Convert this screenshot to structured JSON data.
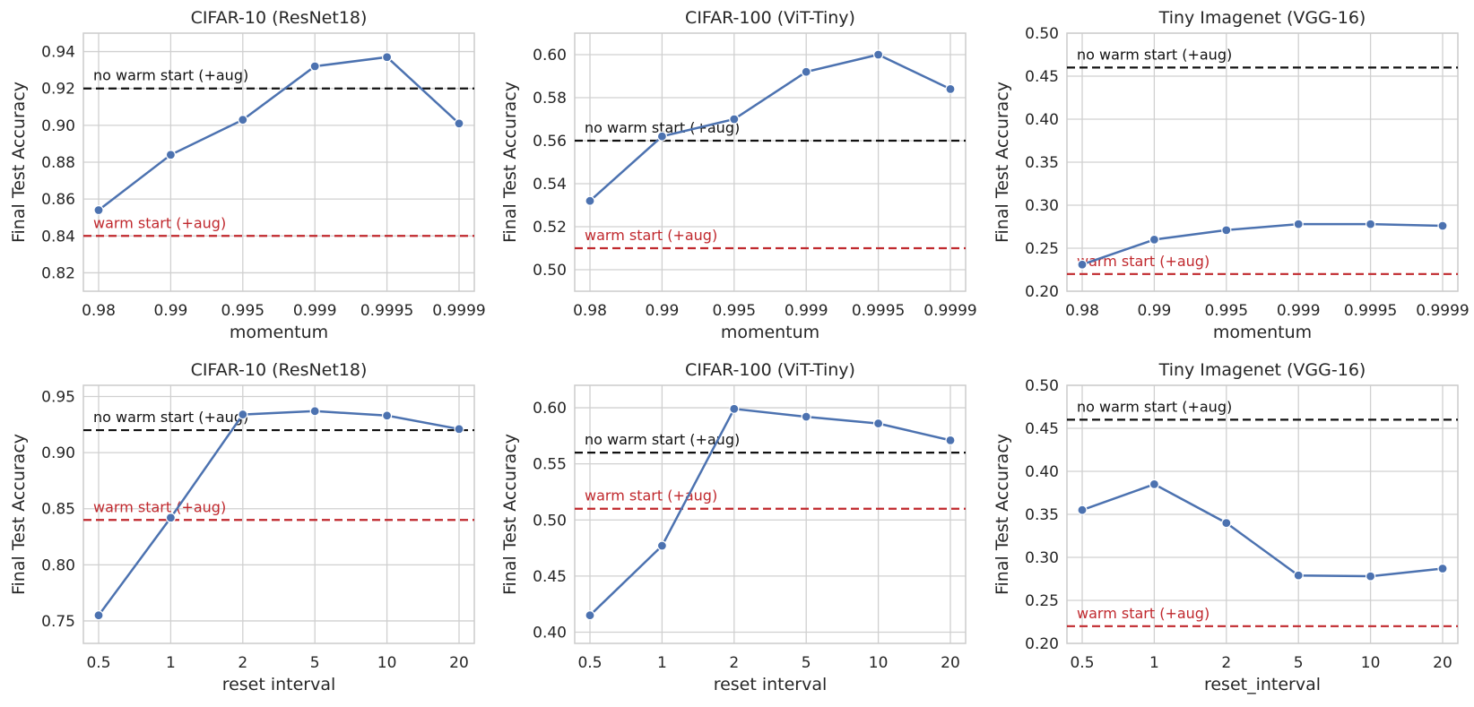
{
  "colors": {
    "series": "#4c72b0",
    "no_warm": "#111111",
    "warm": "#c0282d"
  },
  "chart_data": [
    {
      "type": "line",
      "title": "CIFAR-10 (ResNet18)",
      "xlabel": "momentum",
      "ylabel": "Final Test Accuracy",
      "categories": [
        "0.98",
        "0.99",
        "0.995",
        "0.999",
        "0.9995",
        "0.9999"
      ],
      "values": [
        0.854,
        0.884,
        0.903,
        0.932,
        0.937,
        0.901
      ],
      "ylim": [
        0.81,
        0.95
      ],
      "yticks": [
        "0.82",
        "0.84",
        "0.86",
        "0.88",
        "0.90",
        "0.92",
        "0.94"
      ],
      "ref_lines": [
        {
          "label": "no warm start (+aug)",
          "value": 0.92,
          "color": "#111111"
        },
        {
          "label": "warm start (+aug)",
          "value": 0.84,
          "color": "#c0282d"
        }
      ]
    },
    {
      "type": "line",
      "title": "CIFAR-100 (ViT-Tiny)",
      "xlabel": "momentum",
      "ylabel": "Final Test Accuracy",
      "categories": [
        "0.98",
        "0.99",
        "0.995",
        "0.999",
        "0.9995",
        "0.9999"
      ],
      "values": [
        0.532,
        0.562,
        0.57,
        0.592,
        0.6,
        0.584
      ],
      "ylim": [
        0.49,
        0.61
      ],
      "yticks": [
        "0.50",
        "0.52",
        "0.54",
        "0.56",
        "0.58",
        "0.60"
      ],
      "ref_lines": [
        {
          "label": "no warm start (+aug)",
          "value": 0.56,
          "color": "#111111"
        },
        {
          "label": "warm start (+aug)",
          "value": 0.51,
          "color": "#c0282d"
        }
      ]
    },
    {
      "type": "line",
      "title": "Tiny Imagenet (VGG-16)",
      "xlabel": "momentum",
      "ylabel": "Final Test Accuracy",
      "categories": [
        "0.98",
        "0.99",
        "0.995",
        "0.999",
        "0.9995",
        "0.9999"
      ],
      "values": [
        0.231,
        0.26,
        0.271,
        0.278,
        0.278,
        0.276
      ],
      "ylim": [
        0.2,
        0.5
      ],
      "yticks": [
        "0.20",
        "0.25",
        "0.30",
        "0.35",
        "0.40",
        "0.45",
        "0.50"
      ],
      "ref_lines": [
        {
          "label": "no warm start (+aug)",
          "value": 0.46,
          "color": "#111111"
        },
        {
          "label": "warm start (+aug)",
          "value": 0.22,
          "color": "#c0282d"
        }
      ]
    },
    {
      "type": "line",
      "title": "CIFAR-10 (ResNet18)",
      "xlabel": "reset interval",
      "ylabel": "Final Test Accuracy",
      "categories": [
        "0.5",
        "1",
        "2",
        "5",
        "10",
        "20"
      ],
      "values": [
        0.755,
        0.842,
        0.934,
        0.937,
        0.933,
        0.921
      ],
      "ylim": [
        0.73,
        0.96
      ],
      "yticks": [
        "0.75",
        "0.80",
        "0.85",
        "0.90",
        "0.95"
      ],
      "ref_lines": [
        {
          "label": "no warm start (+aug)",
          "value": 0.92,
          "color": "#111111"
        },
        {
          "label": "warm start (+aug)",
          "value": 0.84,
          "color": "#c0282d"
        }
      ]
    },
    {
      "type": "line",
      "title": "CIFAR-100 (ViT-Tiny)",
      "xlabel": "reset interval",
      "ylabel": "Final Test Accuracy",
      "categories": [
        "0.5",
        "1",
        "2",
        "5",
        "10",
        "20"
      ],
      "values": [
        0.415,
        0.477,
        0.599,
        0.592,
        0.586,
        0.571
      ],
      "ylim": [
        0.39,
        0.62
      ],
      "yticks": [
        "0.40",
        "0.45",
        "0.50",
        "0.55",
        "0.60"
      ],
      "ref_lines": [
        {
          "label": "no warm start (+aug)",
          "value": 0.56,
          "color": "#111111"
        },
        {
          "label": "warm start (+aug)",
          "value": 0.51,
          "color": "#c0282d"
        }
      ]
    },
    {
      "type": "line",
      "title": "Tiny Imagenet (VGG-16)",
      "xlabel": "reset_interval",
      "ylabel": "Final Test Accuracy",
      "categories": [
        "0.5",
        "1",
        "2",
        "5",
        "10",
        "20"
      ],
      "values": [
        0.355,
        0.385,
        0.34,
        0.279,
        0.278,
        0.287
      ],
      "ylim": [
        0.2,
        0.5
      ],
      "yticks": [
        "0.20",
        "0.25",
        "0.30",
        "0.35",
        "0.40",
        "0.45",
        "0.50"
      ],
      "ref_lines": [
        {
          "label": "no warm start (+aug)",
          "value": 0.46,
          "color": "#111111"
        },
        {
          "label": "warm start (+aug)",
          "value": 0.22,
          "color": "#c0282d"
        }
      ]
    }
  ]
}
